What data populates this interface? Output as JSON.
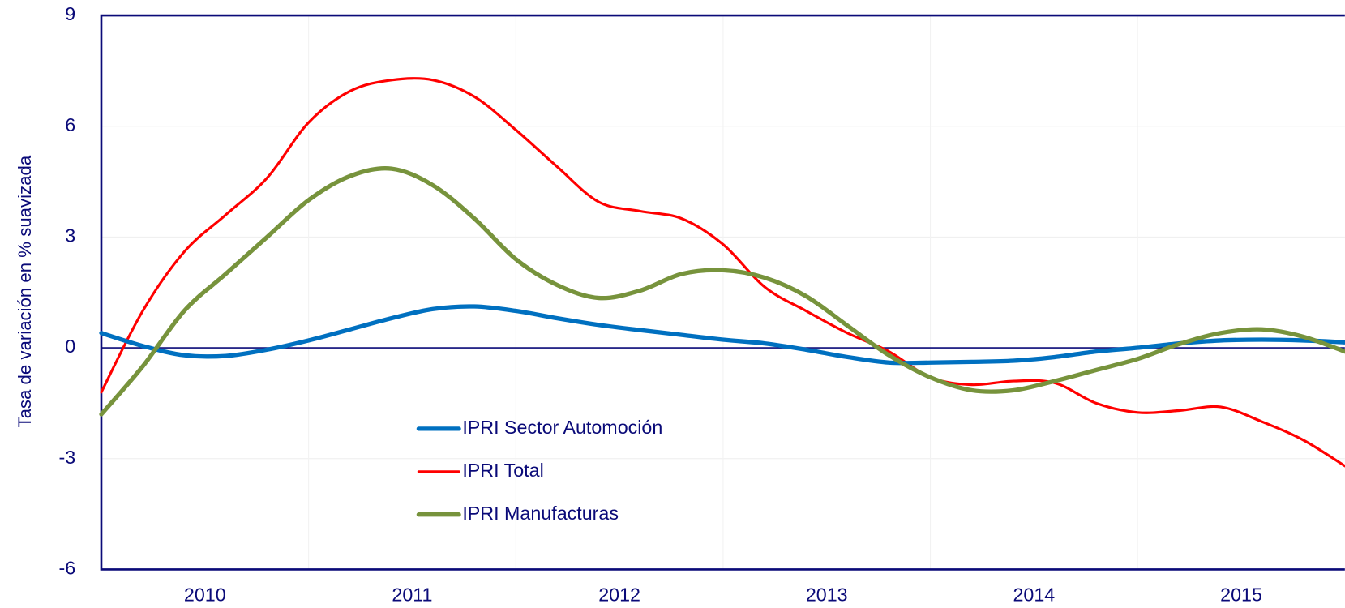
{
  "chart_data": {
    "type": "line",
    "y_label": "Tasa de variación en % suavizada",
    "x": [
      2010.0,
      2010.2,
      2010.4,
      2010.6,
      2010.8,
      2011.0,
      2011.2,
      2011.4,
      2011.6,
      2011.8,
      2012.0,
      2012.2,
      2012.4,
      2012.6,
      2012.8,
      2013.0,
      2013.2,
      2013.4,
      2013.6,
      2013.8,
      2014.0,
      2014.2,
      2014.4,
      2014.6,
      2014.8,
      2015.0,
      2015.2,
      2015.4,
      2015.6,
      2015.8,
      2016.0
    ],
    "series": [
      {
        "name": "IPRI Sector Automoción",
        "color": "#0070c0",
        "values": [
          0.4,
          0.05,
          -0.2,
          -0.22,
          -0.05,
          0.2,
          0.5,
          0.8,
          1.05,
          1.12,
          1.0,
          0.8,
          0.62,
          0.48,
          0.35,
          0.22,
          0.12,
          -0.05,
          -0.25,
          -0.4,
          -0.4,
          -0.38,
          -0.35,
          -0.25,
          -0.1,
          0.0,
          0.12,
          0.2,
          0.22,
          0.2,
          0.15
        ]
      },
      {
        "name": "IPRI Total",
        "color": "#ff0000",
        "values": [
          -1.2,
          1.0,
          2.6,
          3.6,
          4.6,
          6.1,
          6.95,
          7.25,
          7.25,
          6.8,
          5.9,
          4.9,
          3.95,
          3.7,
          3.5,
          2.8,
          1.65,
          1.0,
          0.4,
          -0.1,
          -0.8,
          -1.0,
          -0.9,
          -0.95,
          -1.5,
          -1.75,
          -1.7,
          -1.6,
          -2.0,
          -2.5,
          -3.2
        ]
      },
      {
        "name": "IPRI Manufacturas",
        "color": "#77933c",
        "values": [
          -1.8,
          -0.5,
          1.0,
          2.0,
          3.0,
          4.0,
          4.65,
          4.85,
          4.4,
          3.5,
          2.4,
          1.7,
          1.35,
          1.55,
          2.0,
          2.1,
          1.9,
          1.4,
          0.6,
          -0.2,
          -0.8,
          -1.15,
          -1.15,
          -0.9,
          -0.6,
          -0.3,
          0.1,
          0.4,
          0.5,
          0.3,
          -0.1
        ]
      }
    ],
    "xlim": [
      2010.0,
      2016.0
    ],
    "xticks": [
      2010,
      2011,
      2012,
      2013,
      2014,
      2015
    ],
    "ylim": [
      -6,
      9
    ],
    "yticks": [
      -6,
      -3,
      0,
      3,
      6,
      9
    ],
    "grid": true
  }
}
